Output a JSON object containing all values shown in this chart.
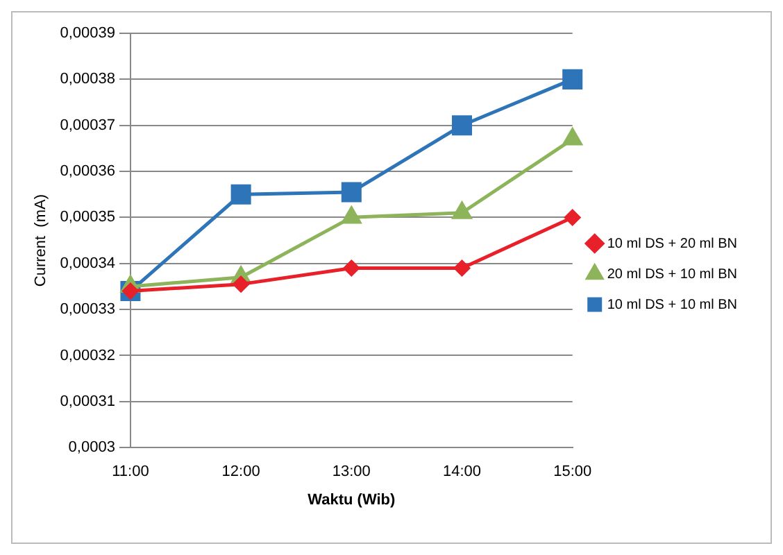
{
  "chart_data": {
    "type": "line",
    "xlabel": "Waktu (Wib)",
    "ylabel": "Current  (mA)",
    "categories": [
      "11:00",
      "12:00",
      "13:00",
      "14:00",
      "15:00"
    ],
    "series": [
      {
        "name": "10 ml DS + 20 ml BN",
        "color": "#e8202a",
        "marker": "diamond",
        "values": [
          0.000334,
          0.0003355,
          0.000339,
          0.000339,
          0.00035
        ]
      },
      {
        "name": "20 ml DS + 10 ml BN",
        "color": "#8db45a",
        "marker": "triangle",
        "values": [
          0.000335,
          0.000337,
          0.00035,
          0.000351,
          0.000367
        ]
      },
      {
        "name": "10 ml DS + 10 ml BN",
        "color": "#2e74b8",
        "marker": "square",
        "values": [
          0.000334,
          0.000355,
          0.0003555,
          0.00037,
          0.00038
        ]
      }
    ],
    "ylim": [
      0.0003,
      0.00039
    ],
    "yticks": [
      {
        "value": 0.0003,
        "label": "0,0003"
      },
      {
        "value": 0.00031,
        "label": "0,00031"
      },
      {
        "value": 0.00032,
        "label": "0,00032"
      },
      {
        "value": 0.00033,
        "label": "0,00033"
      },
      {
        "value": 0.00034,
        "label": "0,00034"
      },
      {
        "value": 0.00035,
        "label": "0,00035"
      },
      {
        "value": 0.00036,
        "label": "0,00036"
      },
      {
        "value": 0.00037,
        "label": "0,00037"
      },
      {
        "value": 0.00038,
        "label": "0,00038"
      },
      {
        "value": 0.00039,
        "label": "0,00039"
      }
    ],
    "grid": "y",
    "legend": "right",
    "line_style": "solid"
  }
}
